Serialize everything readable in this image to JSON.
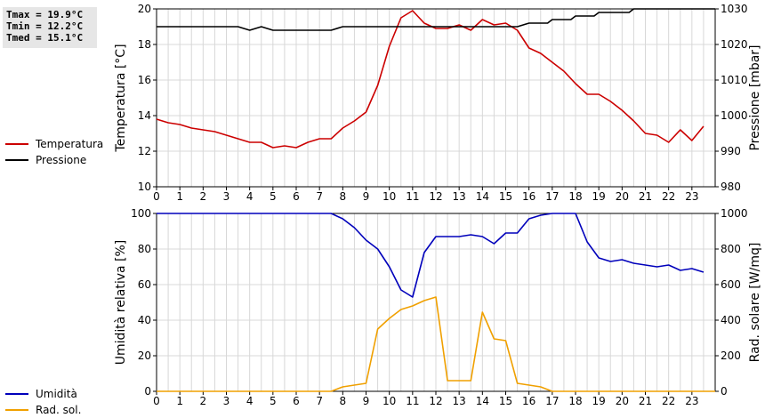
{
  "stats": {
    "tmax": "Tmax = 19.9°C",
    "tmin": "Tmin = 12.2°C",
    "tmed": "Tmed = 15.1°C"
  },
  "legend_top": [
    {
      "label": "Temperatura",
      "color": "#cc0000"
    },
    {
      "label": "Pressione",
      "color": "#000000"
    }
  ],
  "legend_bottom": [
    {
      "label": "Umidità",
      "color": "#0000bb"
    },
    {
      "label": "Rad. sol.",
      "color": "#f0a000"
    }
  ],
  "chart_data": [
    {
      "type": "line",
      "xlim": [
        0,
        24
      ],
      "x_ticks": [
        "0",
        "1",
        "2",
        "3",
        "4",
        "5",
        "6",
        "7",
        "8",
        "9",
        "10",
        "11",
        "12",
        "13",
        "14",
        "15",
        "16",
        "17",
        "18",
        "19",
        "20",
        "21",
        "22",
        "23"
      ],
      "ylabel": "Temperatura [°C]",
      "ylim": [
        10,
        20
      ],
      "y_ticks": [
        10,
        12,
        14,
        16,
        18,
        20
      ],
      "y2label": "Pressione [mbar]",
      "y2lim": [
        980,
        1030
      ],
      "y2_ticks": [
        980,
        990,
        1000,
        1010,
        1020,
        1030
      ],
      "grid": true,
      "series": [
        {
          "name": "Temperatura",
          "axis": "left",
          "color": "#cc0000",
          "points": [
            [
              0,
              13.8
            ],
            [
              0.5,
              13.6
            ],
            [
              1,
              13.5
            ],
            [
              1.5,
              13.3
            ],
            [
              2,
              13.2
            ],
            [
              2.5,
              13.1
            ],
            [
              3,
              12.9
            ],
            [
              3.5,
              12.7
            ],
            [
              4,
              12.5
            ],
            [
              4.5,
              12.5
            ],
            [
              5,
              12.2
            ],
            [
              5.5,
              12.3
            ],
            [
              6,
              12.2
            ],
            [
              6.5,
              12.5
            ],
            [
              7,
              12.7
            ],
            [
              7.5,
              12.7
            ],
            [
              8,
              13.3
            ],
            [
              8.5,
              13.7
            ],
            [
              9,
              14.2
            ],
            [
              9.5,
              15.7
            ],
            [
              10,
              17.9
            ],
            [
              10.5,
              19.5
            ],
            [
              11,
              19.9
            ],
            [
              11.5,
              19.2
            ],
            [
              12,
              18.9
            ],
            [
              12.5,
              18.9
            ],
            [
              13,
              19.1
            ],
            [
              13.5,
              18.8
            ],
            [
              14,
              19.4
            ],
            [
              14.5,
              19.1
            ],
            [
              15,
              19.2
            ],
            [
              15.5,
              18.8
            ],
            [
              16,
              17.8
            ],
            [
              16.5,
              17.5
            ],
            [
              17,
              17.0
            ],
            [
              17.5,
              16.5
            ],
            [
              18,
              15.8
            ],
            [
              18.5,
              15.2
            ],
            [
              19,
              15.2
            ],
            [
              19.5,
              14.8
            ],
            [
              20,
              14.3
            ],
            [
              20.5,
              13.7
            ],
            [
              21,
              13.0
            ],
            [
              21.5,
              12.9
            ],
            [
              22,
              12.5
            ],
            [
              22.5,
              13.2
            ],
            [
              23,
              12.6
            ],
            [
              23.5,
              13.4
            ]
          ]
        },
        {
          "name": "Pressione",
          "axis": "right",
          "color": "#000000",
          "points": [
            [
              0,
              1025
            ],
            [
              3.5,
              1025
            ],
            [
              4,
              1024
            ],
            [
              4.5,
              1025
            ],
            [
              5,
              1024
            ],
            [
              7.5,
              1024
            ],
            [
              8,
              1025
            ],
            [
              15.5,
              1025
            ],
            [
              16,
              1026
            ],
            [
              16.8,
              1026
            ],
            [
              17,
              1027
            ],
            [
              17.8,
              1027
            ],
            [
              18,
              1028
            ],
            [
              18.8,
              1028
            ],
            [
              19,
              1029
            ],
            [
              20.3,
              1029
            ],
            [
              20.5,
              1030
            ],
            [
              24,
              1030
            ]
          ]
        }
      ]
    },
    {
      "type": "line",
      "xlim": [
        0,
        24
      ],
      "x_ticks": [
        "0",
        "1",
        "2",
        "3",
        "4",
        "5",
        "6",
        "7",
        "8",
        "9",
        "10",
        "11",
        "12",
        "13",
        "14",
        "15",
        "16",
        "17",
        "18",
        "19",
        "20",
        "21",
        "22",
        "23"
      ],
      "ylabel": "Umidità relativa [%]",
      "ylim": [
        0,
        100
      ],
      "y_ticks": [
        0,
        20,
        40,
        60,
        80,
        100
      ],
      "y2label": "Rad. solare [W/mq]",
      "y2lim": [
        0,
        1000
      ],
      "y2_ticks": [
        0,
        200,
        400,
        600,
        800,
        1000
      ],
      "grid": true,
      "series": [
        {
          "name": "Umidità",
          "axis": "left",
          "color": "#0000bb",
          "points": [
            [
              0,
              100
            ],
            [
              7.5,
              100
            ],
            [
              8,
              97
            ],
            [
              8.5,
              92
            ],
            [
              9,
              85
            ],
            [
              9.5,
              80
            ],
            [
              10,
              70
            ],
            [
              10.5,
              57
            ],
            [
              11,
              53
            ],
            [
              11.5,
              78
            ],
            [
              12,
              87
            ],
            [
              12.5,
              87
            ],
            [
              13,
              87
            ],
            [
              13.5,
              88
            ],
            [
              14,
              87
            ],
            [
              14.5,
              83
            ],
            [
              15,
              89
            ],
            [
              15.5,
              89
            ],
            [
              16,
              97
            ],
            [
              16.5,
              99
            ],
            [
              17,
              100
            ],
            [
              18,
              100
            ],
            [
              18.5,
              84
            ],
            [
              19,
              75
            ],
            [
              19.5,
              73
            ],
            [
              20,
              74
            ],
            [
              20.5,
              72
            ],
            [
              21,
              71
            ],
            [
              21.5,
              70
            ],
            [
              22,
              71
            ],
            [
              22.5,
              68
            ],
            [
              23,
              69
            ],
            [
              23.5,
              67
            ]
          ]
        },
        {
          "name": "Rad. sol.",
          "axis": "right",
          "color": "#f0a000",
          "points": [
            [
              0,
              0
            ],
            [
              7.5,
              0
            ],
            [
              8,
              25
            ],
            [
              8.5,
              35
            ],
            [
              9,
              45
            ],
            [
              9.5,
              350
            ],
            [
              10,
              410
            ],
            [
              10.5,
              460
            ],
            [
              11,
              480
            ],
            [
              11.5,
              510
            ],
            [
              12,
              530
            ],
            [
              12.5,
              60
            ],
            [
              13,
              60
            ],
            [
              13.5,
              60
            ],
            [
              14,
              445
            ],
            [
              14.5,
              295
            ],
            [
              15,
              285
            ],
            [
              15.5,
              45
            ],
            [
              16,
              35
            ],
            [
              16.5,
              25
            ],
            [
              17,
              0
            ],
            [
              24,
              0
            ]
          ]
        }
      ]
    }
  ]
}
